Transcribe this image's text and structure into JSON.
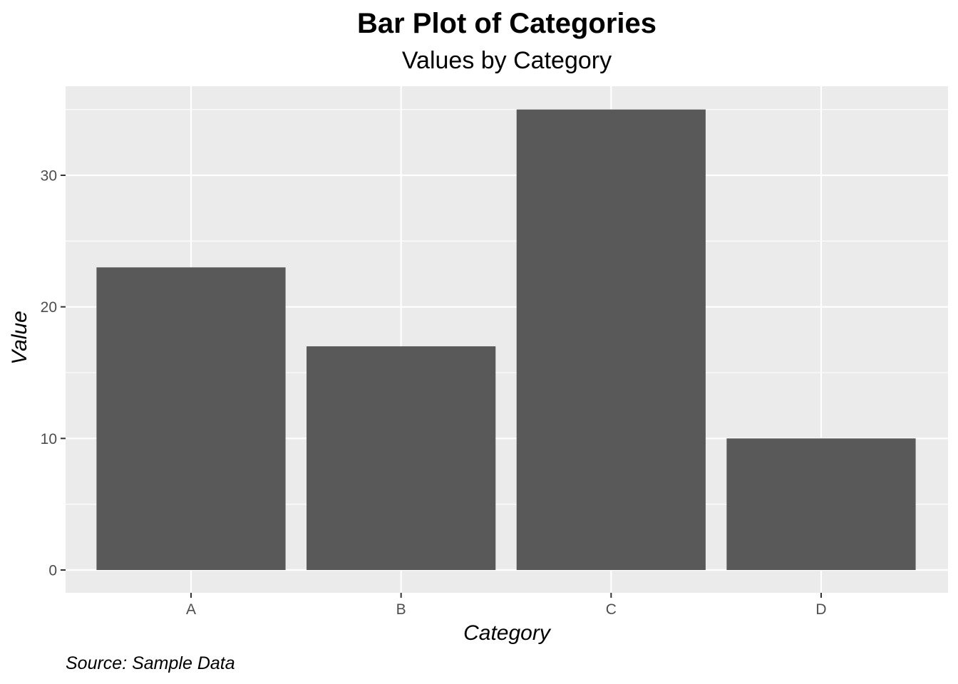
{
  "chart_data": {
    "type": "bar",
    "title": "Bar Plot of Categories",
    "subtitle": "Values by Category",
    "xlabel": "Category",
    "ylabel": "Value",
    "caption": "Source: Sample Data",
    "categories": [
      "A",
      "B",
      "C",
      "D"
    ],
    "values": [
      23,
      17,
      35,
      10
    ],
    "ylim": [
      0,
      35
    ],
    "yticks": [
      0,
      10,
      20,
      30
    ],
    "grid": true,
    "legend": "none",
    "colors": {
      "bar": "#595959",
      "panel": "#ebebeb",
      "grid": "#ffffff",
      "tick": "#333333"
    }
  }
}
